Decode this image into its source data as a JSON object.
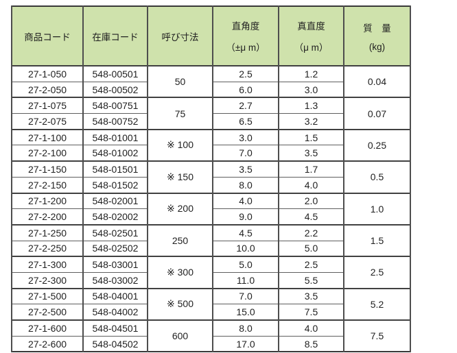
{
  "table": {
    "header_bg": "#cfe2ac",
    "border_color": "#4d4d4d",
    "text_color": "#1f1f1f",
    "headers": [
      {
        "label": "商品コード",
        "unit": ""
      },
      {
        "label": "在庫コード",
        "unit": ""
      },
      {
        "label": "呼び寸法",
        "unit": ""
      },
      {
        "label": "直角度",
        "unit": "（±μ m）"
      },
      {
        "label": "真直度",
        "unit": "（μ m）"
      },
      {
        "label": "質　量",
        "unit": "(kg)"
      }
    ],
    "groups": [
      {
        "size": "50",
        "mass": "0.04",
        "rows": [
          {
            "product": "27-1-050",
            "stock": "548-00501",
            "squareness": "2.5",
            "straightness": "1.2"
          },
          {
            "product": "27-2-050",
            "stock": "548-00502",
            "squareness": "6.0",
            "straightness": "3.0"
          }
        ]
      },
      {
        "size": "75",
        "mass": "0.07",
        "rows": [
          {
            "product": "27-1-075",
            "stock": "548-00751",
            "squareness": "2.7",
            "straightness": "1.3"
          },
          {
            "product": "27-2-075",
            "stock": "548-00752",
            "squareness": "6.5",
            "straightness": "3.2"
          }
        ]
      },
      {
        "size": "※ 100",
        "mass": "0.25",
        "rows": [
          {
            "product": "27-1-100",
            "stock": "548-01001",
            "squareness": "3.0",
            "straightness": "1.5"
          },
          {
            "product": "27-2-100",
            "stock": "548-01002",
            "squareness": "7.0",
            "straightness": "3.5"
          }
        ]
      },
      {
        "size": "※ 150",
        "mass": "0.5",
        "rows": [
          {
            "product": "27-1-150",
            "stock": "548-01501",
            "squareness": "3.5",
            "straightness": "1.7"
          },
          {
            "product": "27-2-150",
            "stock": "548-01502",
            "squareness": "8.0",
            "straightness": "4.0"
          }
        ]
      },
      {
        "size": "※ 200",
        "mass": "1.0",
        "rows": [
          {
            "product": "27-1-200",
            "stock": "548-02001",
            "squareness": "4.0",
            "straightness": "2.0"
          },
          {
            "product": "27-2-200",
            "stock": "548-02002",
            "squareness": "9.0",
            "straightness": "4.5"
          }
        ]
      },
      {
        "size": "250",
        "mass": "1.5",
        "rows": [
          {
            "product": "27-1-250",
            "stock": "548-02501",
            "squareness": "4.5",
            "straightness": "2.2"
          },
          {
            "product": "27-2-250",
            "stock": "548-02502",
            "squareness": "10.0",
            "straightness": "5.0"
          }
        ]
      },
      {
        "size": "※ 300",
        "mass": "2.5",
        "rows": [
          {
            "product": "27-1-300",
            "stock": "548-03001",
            "squareness": "5.0",
            "straightness": "2.5"
          },
          {
            "product": "27-2-300",
            "stock": "548-03002",
            "squareness": "11.0",
            "straightness": "5.5"
          }
        ]
      },
      {
        "size": "※ 500",
        "mass": "5.2",
        "rows": [
          {
            "product": "27-1-500",
            "stock": "548-04001",
            "squareness": "7.0",
            "straightness": "3.5"
          },
          {
            "product": "27-2-500",
            "stock": "548-04002",
            "squareness": "15.0",
            "straightness": "7.5"
          }
        ]
      },
      {
        "size": "600",
        "mass": "7.5",
        "rows": [
          {
            "product": "27-1-600",
            "stock": "548-04501",
            "squareness": "8.0",
            "straightness": "4.0"
          },
          {
            "product": "27-2-600",
            "stock": "548-04502",
            "squareness": "17.0",
            "straightness": "8.5"
          }
        ]
      }
    ]
  }
}
